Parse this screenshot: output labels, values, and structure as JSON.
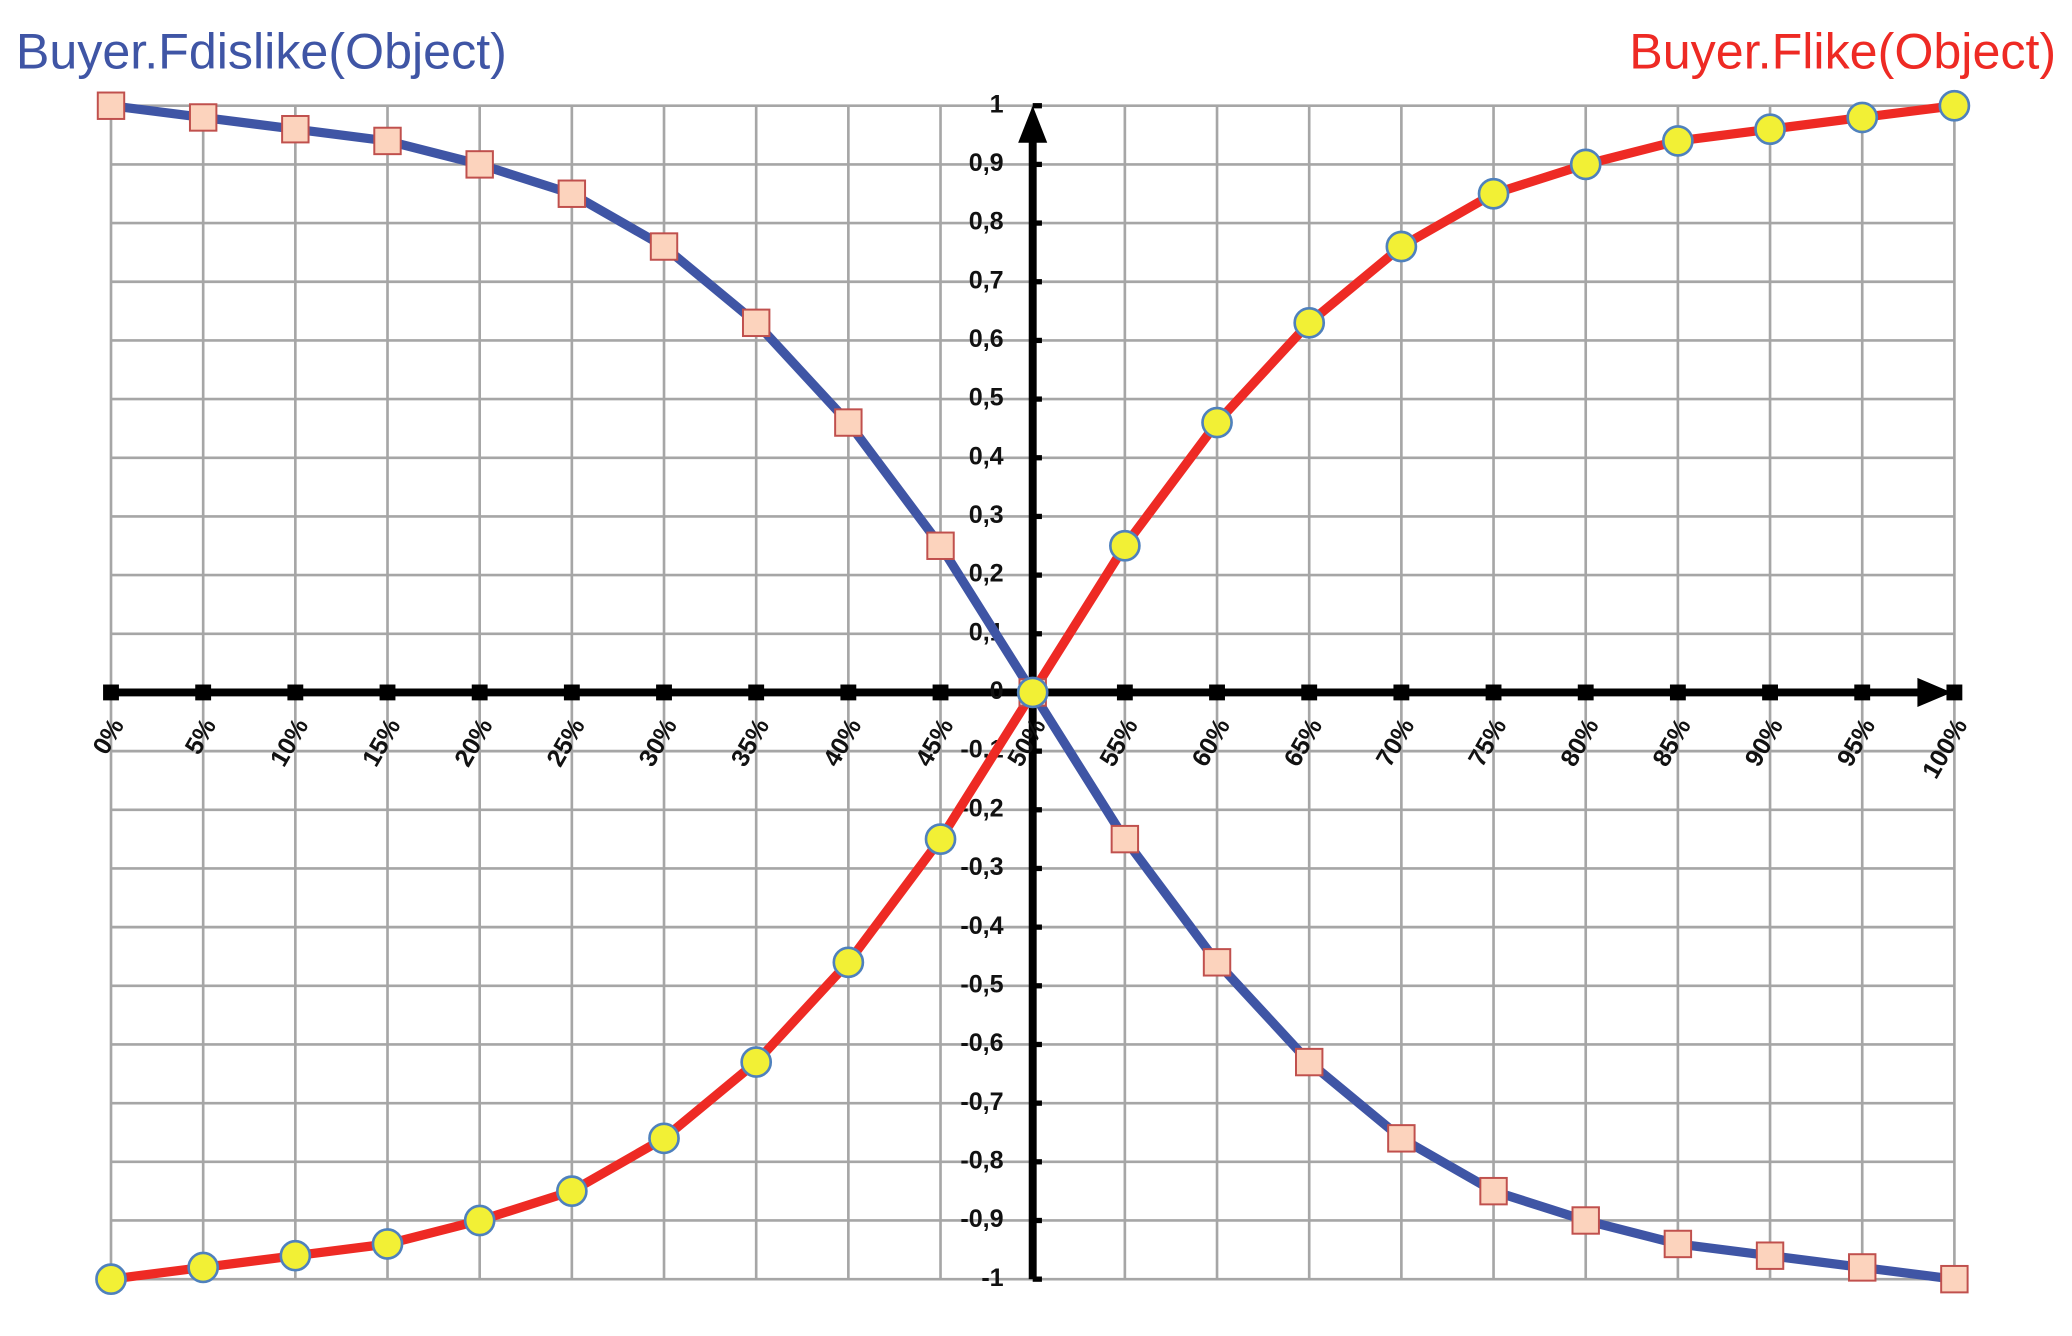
{
  "chart_data": {
    "type": "line",
    "categories": [
      "0%",
      "5%",
      "10%",
      "15%",
      "20%",
      "25%",
      "30%",
      "35%",
      "40%",
      "45%",
      "50%",
      "55%",
      "60%",
      "65%",
      "70%",
      "75%",
      "80%",
      "85%",
      "90%",
      "95%",
      "100%"
    ],
    "series": [
      {
        "name": "Buyer.Fdislike(Object)",
        "color": "#3f55a5",
        "marker": "square",
        "marker_color": "#fcd3bd",
        "marker_edge": "#c0504d",
        "values": [
          1,
          0.98,
          0.96,
          0.94,
          0.9,
          0.85,
          0.76,
          0.63,
          0.46,
          0.25,
          0,
          -0.25,
          -0.46,
          -0.63,
          -0.76,
          -0.85,
          -0.9,
          -0.94,
          -0.96,
          -0.98,
          -1
        ]
      },
      {
        "name": "Buyer.Flike(Object)",
        "color": "#ee2a24",
        "marker": "circle",
        "marker_color": "#f2f035",
        "marker_edge": "#4f81bd",
        "values": [
          -1,
          -0.98,
          -0.96,
          -0.94,
          -0.9,
          -0.85,
          -0.76,
          -0.63,
          -0.46,
          -0.25,
          0,
          0.25,
          0.46,
          0.63,
          0.76,
          0.85,
          0.9,
          0.94,
          0.96,
          0.98,
          1
        ]
      }
    ],
    "ylim": [
      -1,
      1
    ],
    "yticks": [
      -1,
      {
        "value": -0.9,
        "label": "-0,9"
      },
      {
        "value": -0.8,
        "label": "-0,8"
      },
      {
        "value": -0.7,
        "label": "-0,7"
      },
      {
        "value": -0.6,
        "label": "-0,6"
      },
      {
        "value": -0.5,
        "label": "-0,5"
      },
      {
        "value": -0.4,
        "label": "-0,4"
      },
      {
        "value": -0.3,
        "label": "-0,3"
      },
      {
        "value": -0.2,
        "label": "-0,2"
      },
      {
        "value": -0.1,
        "label": "-0,1"
      },
      0,
      {
        "value": 0.1,
        "label": "0,1"
      },
      {
        "value": 0.2,
        "label": "0,2"
      },
      {
        "value": 0.3,
        "label": "0,3"
      },
      {
        "value": 0.4,
        "label": "0,4"
      },
      {
        "value": 0.5,
        "label": "0,5"
      },
      {
        "value": 0.6,
        "label": "0,6"
      },
      {
        "value": 0.7,
        "label": "0,7"
      },
      {
        "value": 0.8,
        "label": "0,8"
      },
      {
        "value": 0.9,
        "label": "0,9"
      },
      1
    ],
    "grid": true
  }
}
